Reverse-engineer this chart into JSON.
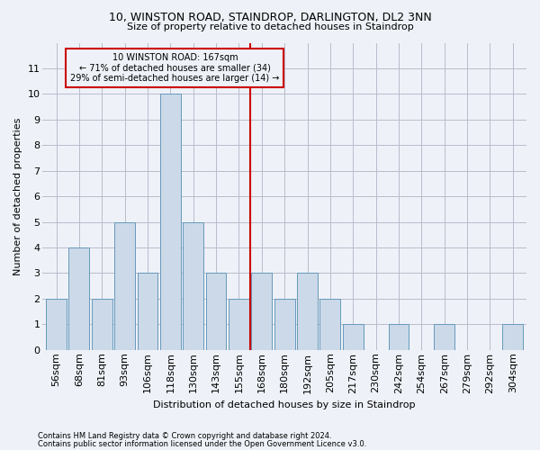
{
  "title1": "10, WINSTON ROAD, STAINDROP, DARLINGTON, DL2 3NN",
  "title2": "Size of property relative to detached houses in Staindrop",
  "xlabel": "Distribution of detached houses by size in Staindrop",
  "ylabel": "Number of detached properties",
  "footer1": "Contains HM Land Registry data © Crown copyright and database right 2024.",
  "footer2": "Contains public sector information licensed under the Open Government Licence v3.0.",
  "annotation_line1": "10 WINSTON ROAD: 167sqm",
  "annotation_line2": "← 71% of detached houses are smaller (34)",
  "annotation_line3": "29% of semi-detached houses are larger (14) →",
  "bins": [
    "56sqm",
    "68sqm",
    "81sqm",
    "93sqm",
    "106sqm",
    "118sqm",
    "130sqm",
    "143sqm",
    "155sqm",
    "168sqm",
    "180sqm",
    "192sqm",
    "205sqm",
    "217sqm",
    "230sqm",
    "242sqm",
    "254sqm",
    "267sqm",
    "279sqm",
    "292sqm",
    "304sqm"
  ],
  "values": [
    2,
    4,
    2,
    5,
    3,
    10,
    5,
    3,
    2,
    3,
    2,
    3,
    2,
    1,
    0,
    1,
    0,
    1,
    0,
    0,
    1
  ],
  "bar_color": "#ccd9e8",
  "bar_edge_color": "#6699bb",
  "vline_x": 8.5,
  "vline_color": "#cc0000",
  "ylim": [
    0,
    12
  ],
  "yticks": [
    0,
    1,
    2,
    3,
    4,
    5,
    6,
    7,
    8,
    9,
    10,
    11
  ],
  "grid_color": "#bbbbcc",
  "annotation_box_color": "#cc0000",
  "bg_color": "#eef2f8",
  "title_fontsize": 9,
  "subtitle_fontsize": 8,
  "ylabel_fontsize": 8,
  "xlabel_fontsize": 8,
  "tick_fontsize": 8,
  "annot_fontsize": 7,
  "footer_fontsize": 6
}
